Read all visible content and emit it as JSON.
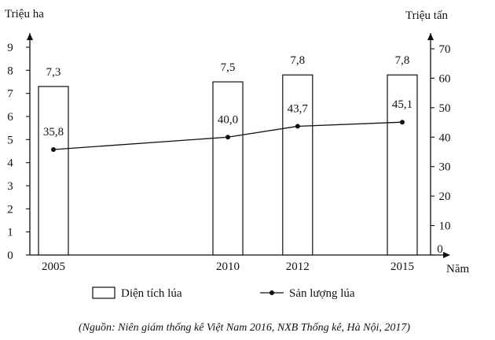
{
  "chart_data": {
    "type": "bar-line",
    "categories": [
      "2005",
      "2010",
      "2012",
      "2015"
    ],
    "x": [
      2005,
      2010,
      2012,
      2015
    ],
    "xlabel": "Năm",
    "series": [
      {
        "name": "Diện tích lúa",
        "type": "bar",
        "axis": "left",
        "values": [
          7.3,
          7.5,
          7.8,
          7.8
        ],
        "labels": [
          "7,3",
          "7,5",
          "7,8",
          "7,8"
        ]
      },
      {
        "name": "Sản lượng lúa",
        "type": "line",
        "axis": "right",
        "values": [
          35.8,
          40.0,
          43.7,
          45.1
        ],
        "labels": [
          "35,8",
          "40,0",
          "43,7",
          "45,1"
        ]
      }
    ],
    "y_left": {
      "label": "Triệu ha",
      "ylim": [
        0,
        9
      ],
      "ticks": [
        "0",
        "1",
        "2",
        "3",
        "4",
        "5",
        "6",
        "7",
        "8",
        "9"
      ]
    },
    "y_right": {
      "label": "Triệu tấn",
      "ylim": [
        0,
        70
      ],
      "ticks": [
        "0",
        "10",
        "20",
        "30",
        "40",
        "50",
        "60",
        "70"
      ]
    },
    "grid": false,
    "legend_position": "bottom",
    "source": "(Nguồn: Niên giám thống kê Việt Nam 2016, NXB Thống kê, Hà Nội, 2017)",
    "colors": {
      "bar_fill": "#ffffff",
      "stroke": "#111111"
    }
  }
}
